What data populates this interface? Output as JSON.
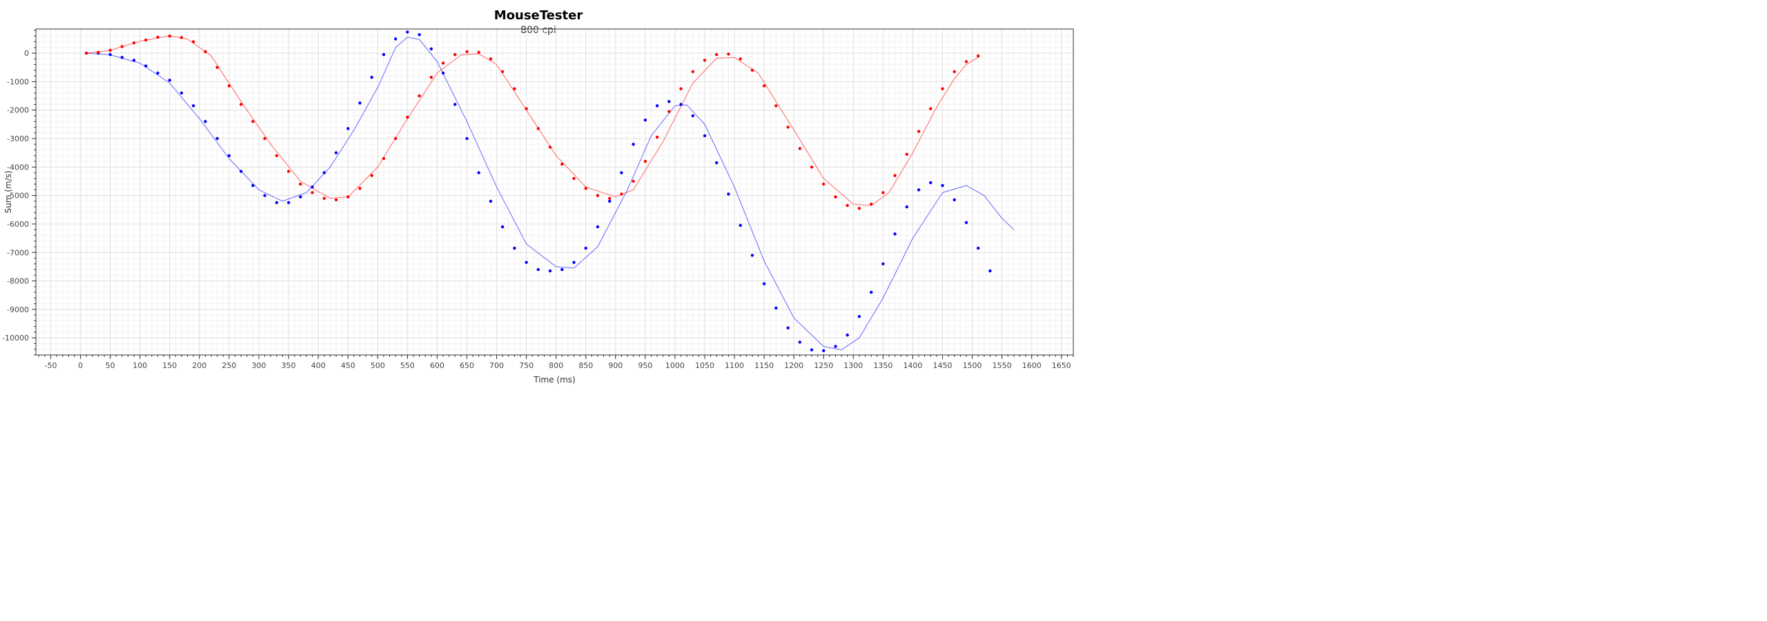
{
  "chart_data": {
    "type": "scatter",
    "title": "MouseTester",
    "subtitle": "800 cpi",
    "xlabel": "Time (ms)",
    "ylabel": "Sum (m/s)",
    "xlim": [
      -75,
      1670
    ],
    "ylim": [
      -10600,
      850
    ],
    "xticks": [
      -50,
      0,
      50,
      100,
      150,
      200,
      250,
      300,
      350,
      400,
      450,
      500,
      550,
      600,
      650,
      700,
      750,
      800,
      850,
      900,
      950,
      1000,
      1050,
      1100,
      1150,
      1200,
      1250,
      1300,
      1350,
      1400,
      1450,
      1500,
      1550,
      1600,
      1650
    ],
    "yticks": [
      0,
      -1000,
      -2000,
      -3000,
      -4000,
      -5000,
      -6000,
      -7000,
      -8000,
      -9000,
      -10000
    ],
    "grid": true,
    "series": [
      {
        "color": "#0000ff",
        "points": [
          [
            10,
            0
          ],
          [
            30,
            0
          ],
          [
            50,
            -50
          ],
          [
            70,
            -150
          ],
          [
            90,
            -250
          ],
          [
            110,
            -450
          ],
          [
            130,
            -700
          ],
          [
            150,
            -950
          ],
          [
            170,
            -1400
          ],
          [
            190,
            -1850
          ],
          [
            210,
            -2400
          ],
          [
            230,
            -3000
          ],
          [
            250,
            -3600
          ],
          [
            270,
            -4150
          ],
          [
            290,
            -4650
          ],
          [
            310,
            -5000
          ],
          [
            330,
            -5250
          ],
          [
            350,
            -5250
          ],
          [
            370,
            -5050
          ],
          [
            390,
            -4700
          ],
          [
            410,
            -4200
          ],
          [
            430,
            -3500
          ],
          [
            450,
            -2650
          ],
          [
            470,
            -1750
          ],
          [
            490,
            -850
          ],
          [
            510,
            -50
          ],
          [
            530,
            500
          ],
          [
            550,
            740
          ],
          [
            570,
            650
          ],
          [
            590,
            150
          ],
          [
            610,
            -700
          ],
          [
            630,
            -1800
          ],
          [
            650,
            -3000
          ],
          [
            670,
            -4200
          ],
          [
            690,
            -5200
          ],
          [
            710,
            -6100
          ],
          [
            730,
            -6850
          ],
          [
            750,
            -7350
          ],
          [
            770,
            -7600
          ],
          [
            790,
            -7650
          ],
          [
            810,
            -7600
          ],
          [
            830,
            -7350
          ],
          [
            850,
            -6850
          ],
          [
            870,
            -6100
          ],
          [
            890,
            -5200
          ],
          [
            910,
            -4200
          ],
          [
            930,
            -3200
          ],
          [
            950,
            -2350
          ],
          [
            970,
            -1850
          ],
          [
            990,
            -1700
          ],
          [
            1010,
            -1800
          ],
          [
            1030,
            -2200
          ],
          [
            1050,
            -2900
          ],
          [
            1070,
            -3850
          ],
          [
            1090,
            -4950
          ],
          [
            1110,
            -6050
          ],
          [
            1130,
            -7100
          ],
          [
            1150,
            -8100
          ],
          [
            1170,
            -8950
          ],
          [
            1190,
            -9650
          ],
          [
            1210,
            -10150
          ],
          [
            1230,
            -10420
          ],
          [
            1250,
            -10450
          ],
          [
            1270,
            -10300
          ],
          [
            1290,
            -9900
          ],
          [
            1310,
            -9250
          ],
          [
            1330,
            -8400
          ],
          [
            1350,
            -7400
          ],
          [
            1370,
            -6350
          ],
          [
            1390,
            -5400
          ],
          [
            1410,
            -4800
          ],
          [
            1430,
            -4550
          ],
          [
            1450,
            -4650
          ],
          [
            1470,
            -5150
          ],
          [
            1490,
            -5950
          ],
          [
            1510,
            -6850
          ],
          [
            1530,
            -7650
          ]
        ],
        "fit": [
          [
            10,
            0
          ],
          [
            50,
            -60
          ],
          [
            100,
            -350
          ],
          [
            150,
            -1050
          ],
          [
            200,
            -2300
          ],
          [
            250,
            -3700
          ],
          [
            300,
            -4800
          ],
          [
            340,
            -5200
          ],
          [
            380,
            -4900
          ],
          [
            420,
            -4000
          ],
          [
            460,
            -2700
          ],
          [
            500,
            -1200
          ],
          [
            530,
            200
          ],
          [
            550,
            560
          ],
          [
            570,
            480
          ],
          [
            600,
            -300
          ],
          [
            650,
            -2400
          ],
          [
            700,
            -4700
          ],
          [
            750,
            -6700
          ],
          [
            800,
            -7500
          ],
          [
            830,
            -7550
          ],
          [
            870,
            -6800
          ],
          [
            920,
            -4800
          ],
          [
            960,
            -2900
          ],
          [
            1000,
            -1850
          ],
          [
            1020,
            -1820
          ],
          [
            1050,
            -2500
          ],
          [
            1100,
            -4700
          ],
          [
            1150,
            -7300
          ],
          [
            1200,
            -9300
          ],
          [
            1250,
            -10300
          ],
          [
            1280,
            -10420
          ],
          [
            1310,
            -10000
          ],
          [
            1350,
            -8600
          ],
          [
            1400,
            -6500
          ],
          [
            1450,
            -4900
          ],
          [
            1490,
            -4650
          ],
          [
            1520,
            -5000
          ],
          [
            1550,
            -5800
          ],
          [
            1570,
            -6200
          ]
        ]
      },
      {
        "color": "#ff0000",
        "points": [
          [
            10,
            0
          ],
          [
            30,
            25
          ],
          [
            50,
            100
          ],
          [
            70,
            230
          ],
          [
            90,
            360
          ],
          [
            110,
            460
          ],
          [
            130,
            560
          ],
          [
            150,
            600
          ],
          [
            170,
            550
          ],
          [
            190,
            400
          ],
          [
            210,
            50
          ],
          [
            230,
            -500
          ],
          [
            250,
            -1150
          ],
          [
            270,
            -1800
          ],
          [
            290,
            -2400
          ],
          [
            310,
            -3000
          ],
          [
            330,
            -3600
          ],
          [
            350,
            -4150
          ],
          [
            370,
            -4600
          ],
          [
            390,
            -4900
          ],
          [
            410,
            -5100
          ],
          [
            430,
            -5150
          ],
          [
            450,
            -5050
          ],
          [
            470,
            -4750
          ],
          [
            490,
            -4300
          ],
          [
            510,
            -3700
          ],
          [
            530,
            -3000
          ],
          [
            550,
            -2250
          ],
          [
            570,
            -1500
          ],
          [
            590,
            -850
          ],
          [
            610,
            -350
          ],
          [
            630,
            -50
          ],
          [
            650,
            50
          ],
          [
            670,
            30
          ],
          [
            690,
            -200
          ],
          [
            710,
            -650
          ],
          [
            730,
            -1250
          ],
          [
            750,
            -1950
          ],
          [
            770,
            -2650
          ],
          [
            790,
            -3300
          ],
          [
            810,
            -3900
          ],
          [
            830,
            -4400
          ],
          [
            850,
            -4750
          ],
          [
            870,
            -5000
          ],
          [
            890,
            -5100
          ],
          [
            910,
            -4950
          ],
          [
            930,
            -4500
          ],
          [
            950,
            -3800
          ],
          [
            970,
            -2950
          ],
          [
            990,
            -2050
          ],
          [
            1010,
            -1250
          ],
          [
            1030,
            -650
          ],
          [
            1050,
            -250
          ],
          [
            1070,
            -50
          ],
          [
            1090,
            -30
          ],
          [
            1110,
            -200
          ],
          [
            1130,
            -600
          ],
          [
            1150,
            -1150
          ],
          [
            1170,
            -1850
          ],
          [
            1190,
            -2600
          ],
          [
            1210,
            -3350
          ],
          [
            1230,
            -4000
          ],
          [
            1250,
            -4600
          ],
          [
            1270,
            -5050
          ],
          [
            1290,
            -5350
          ],
          [
            1310,
            -5450
          ],
          [
            1330,
            -5300
          ],
          [
            1350,
            -4900
          ],
          [
            1370,
            -4300
          ],
          [
            1390,
            -3550
          ],
          [
            1410,
            -2750
          ],
          [
            1430,
            -1950
          ],
          [
            1450,
            -1250
          ],
          [
            1470,
            -650
          ],
          [
            1490,
            -300
          ],
          [
            1510,
            -100
          ]
        ],
        "fit": [
          [
            10,
            0
          ],
          [
            50,
            100
          ],
          [
            100,
            420
          ],
          [
            150,
            600
          ],
          [
            180,
            500
          ],
          [
            220,
            -100
          ],
          [
            270,
            -1700
          ],
          [
            320,
            -3200
          ],
          [
            370,
            -4500
          ],
          [
            420,
            -5100
          ],
          [
            450,
            -5050
          ],
          [
            500,
            -4000
          ],
          [
            550,
            -2300
          ],
          [
            600,
            -700
          ],
          [
            640,
            -60
          ],
          [
            670,
            -20
          ],
          [
            700,
            -400
          ],
          [
            750,
            -2000
          ],
          [
            800,
            -3600
          ],
          [
            850,
            -4700
          ],
          [
            900,
            -5050
          ],
          [
            930,
            -4800
          ],
          [
            980,
            -3100
          ],
          [
            1030,
            -1050
          ],
          [
            1070,
            -180
          ],
          [
            1100,
            -150
          ],
          [
            1140,
            -700
          ],
          [
            1200,
            -2700
          ],
          [
            1250,
            -4400
          ],
          [
            1300,
            -5300
          ],
          [
            1330,
            -5350
          ],
          [
            1360,
            -4900
          ],
          [
            1400,
            -3500
          ],
          [
            1440,
            -1900
          ],
          [
            1470,
            -900
          ],
          [
            1490,
            -400
          ],
          [
            1510,
            -150
          ]
        ]
      }
    ]
  }
}
